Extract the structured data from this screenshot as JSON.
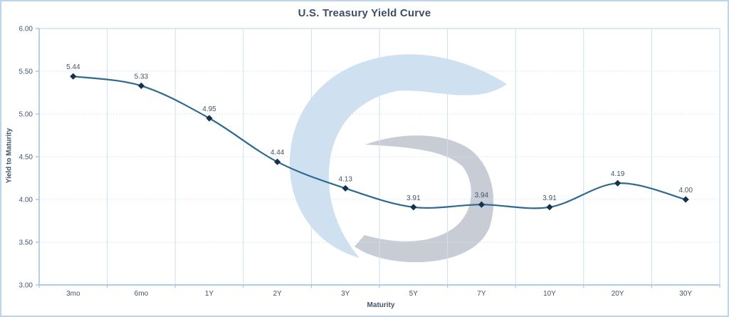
{
  "chart_data": {
    "type": "line",
    "title": "U.S. Treasury Yield Curve",
    "xlabel": "Maturity",
    "ylabel": "Yield to Maturity",
    "categories": [
      "3mo",
      "6mo",
      "1Y",
      "2Y",
      "3Y",
      "5Y",
      "7Y",
      "10Y",
      "20Y",
      "30Y"
    ],
    "values": [
      5.44,
      5.33,
      4.95,
      4.44,
      4.13,
      3.91,
      3.94,
      3.91,
      4.19,
      4.0
    ],
    "data_labels": [
      "5.44",
      "5.33",
      "4.95",
      "4.44",
      "4.13",
      "3.91",
      "3.94",
      "3.91",
      "4.19",
      "4.00"
    ],
    "ylim": [
      3.0,
      6.0
    ],
    "ytick_step": 0.5,
    "yticks": [
      "6.00",
      "5.50",
      "5.00",
      "4.50",
      "4.00",
      "3.50",
      "3.00"
    ],
    "grid": true,
    "legend": "none",
    "line_smooth": true
  },
  "colors": {
    "background": "#ffffff",
    "outer_border": "#bcd4ec",
    "title_text": "#3c4f66",
    "axis_text": "#44546a",
    "axis_line": "#a5c4e4",
    "plot_border": "#c3daf0",
    "gridline_horizontal": "#cfe1f3",
    "gridline_vertical": "#cddff1",
    "series_line": "#2d6a8e",
    "marker": "#14314d",
    "data_label_text": "#44546a",
    "watermark_blue": "#cfe0f1",
    "watermark_gray": "#c8cdd5"
  }
}
